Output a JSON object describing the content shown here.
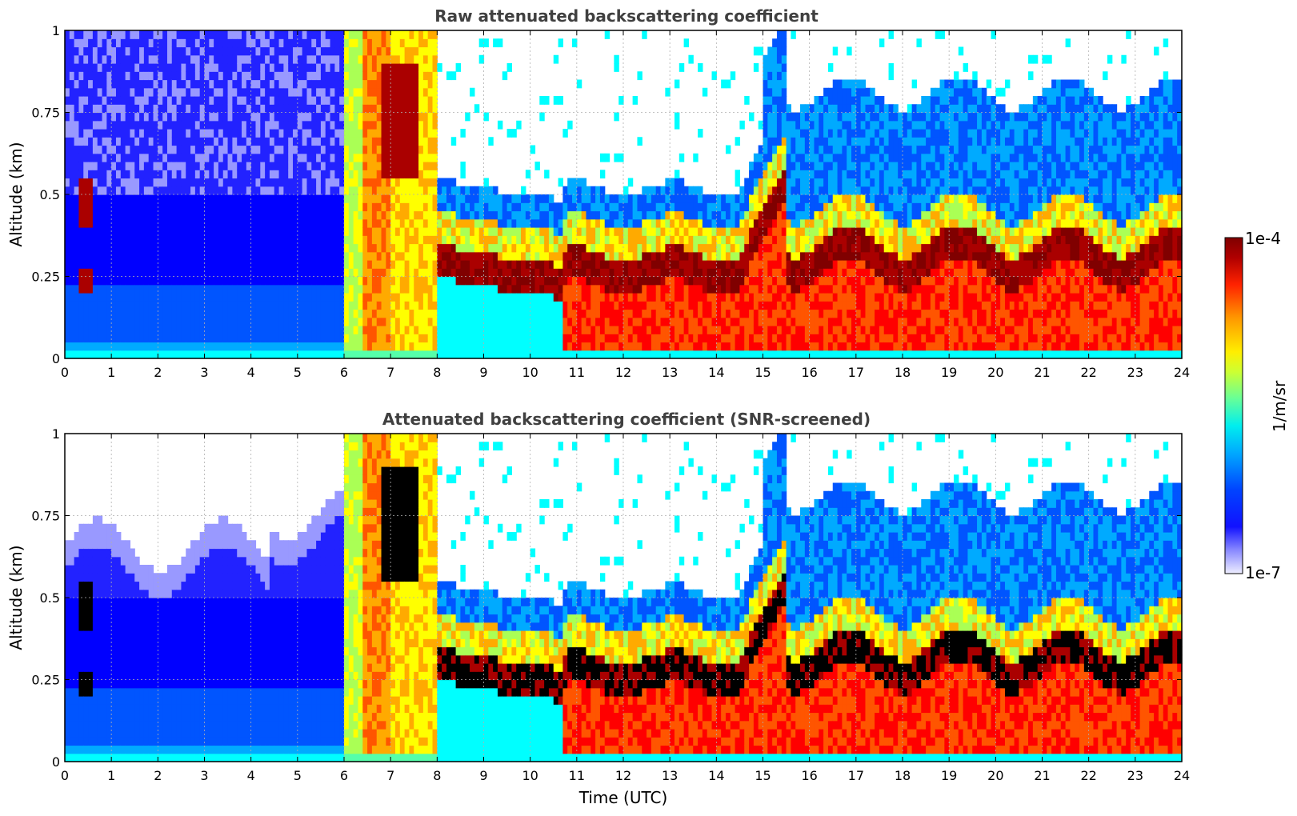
{
  "chart_data": [
    {
      "type": "heatmap",
      "title": "Raw attenuated backscattering coefficient",
      "xlabel": "",
      "ylabel": "Altitude (km)",
      "xlim": [
        0,
        24
      ],
      "ylim": [
        0,
        1
      ],
      "xticks": [
        "0",
        "1",
        "2",
        "3",
        "4",
        "5",
        "6",
        "7",
        "8",
        "9",
        "10",
        "11",
        "12",
        "13",
        "14",
        "15",
        "16",
        "17",
        "18",
        "19",
        "20",
        "21",
        "22",
        "23",
        "24"
      ],
      "yticks": [
        "0",
        "0.25",
        "0.5",
        "0.75",
        "1"
      ],
      "grid": true,
      "screened": false
    },
    {
      "type": "heatmap",
      "title": "Attenuated backscattering coefficient (SNR-screened)",
      "xlabel": "Time (UTC)",
      "ylabel": "Altitude (km)",
      "xlim": [
        0,
        24
      ],
      "ylim": [
        0,
        1
      ],
      "xticks": [
        "0",
        "1",
        "2",
        "3",
        "4",
        "5",
        "6",
        "7",
        "8",
        "9",
        "10",
        "11",
        "12",
        "13",
        "14",
        "15",
        "16",
        "17",
        "18",
        "19",
        "20",
        "21",
        "22",
        "23",
        "24"
      ],
      "yticks": [
        "0",
        "0.25",
        "0.5",
        "0.75",
        "1"
      ],
      "grid": true,
      "screened": true
    }
  ],
  "colorbar": {
    "label": "1/m/sr",
    "max_label": "1e-4",
    "min_label": "1e-7",
    "scale": "log",
    "colors": [
      "#eeeeff",
      "#9999ff",
      "#2222ff",
      "#0000ff",
      "#0055ff",
      "#00aaff",
      "#00ffff",
      "#55ffaa",
      "#aaff55",
      "#ffff00",
      "#ffaa00",
      "#ff5500",
      "#ff0000",
      "#aa0000",
      "#800000"
    ]
  }
}
